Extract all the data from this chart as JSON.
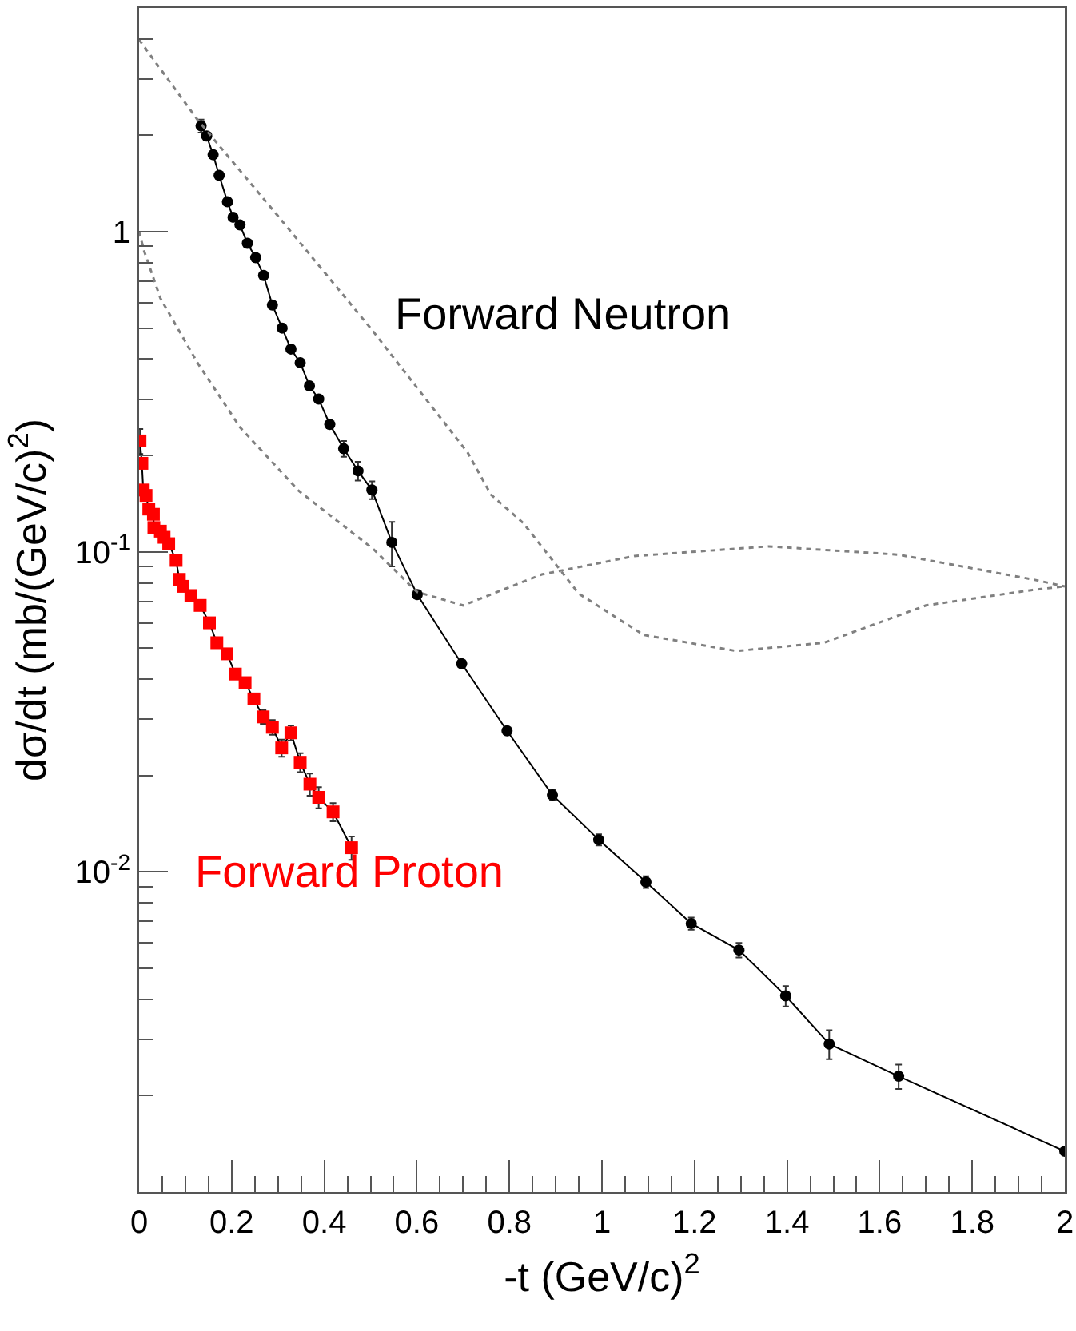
{
  "chart_data": {
    "type": "line",
    "xlabel": "-t (GeV/c)$^{2}$",
    "ylabel": "dσ/dt (mb/(GeV/c)$^{2}$)",
    "log": "y",
    "grid": false,
    "legend": false,
    "xlim": [
      0,
      2
    ],
    "xticks": [
      0,
      0.2,
      0.4,
      0.6,
      0.8,
      1,
      1.2,
      1.4,
      1.6,
      1.8,
      2
    ],
    "ylim": [
      0.001,
      5
    ],
    "yticks": [
      {
        "value": 1,
        "label": "1"
      },
      {
        "value": 0.1,
        "label": "10$^{-1}$"
      },
      {
        "value": 0.01,
        "label": "10$^{-2}$"
      }
    ],
    "series": [
      {
        "name": "Forward Neutron",
        "color": "#000000",
        "marker": "circle",
        "line_style": "solid",
        "x": [
          0.134,
          0.146,
          0.16,
          0.173,
          0.191,
          0.203,
          0.218,
          0.234,
          0.252,
          0.269,
          0.288,
          0.309,
          0.328,
          0.348,
          0.368,
          0.388,
          0.412,
          0.442,
          0.473,
          0.503,
          0.546,
          0.601,
          0.697,
          0.795,
          0.893,
          0.993,
          1.095,
          1.193,
          1.296,
          1.397,
          1.491,
          1.641,
          2
        ],
        "values": [
          2.14,
          1.99,
          1.74,
          1.5,
          1.24,
          1.11,
          1.05,
          0.92,
          0.83,
          0.73,
          0.59,
          0.5,
          0.43,
          0.39,
          0.33,
          0.3,
          0.25,
          0.21,
          0.179,
          0.156,
          0.107,
          0.0735,
          0.0447,
          0.0276,
          0.0174,
          0.0126,
          0.0093,
          0.0069,
          0.0057,
          0.0041,
          0.0029,
          0.0023,
          0.00134
        ],
        "errors": [
          0.1,
          null,
          null,
          null,
          null,
          null,
          null,
          null,
          null,
          null,
          null,
          null,
          null,
          null,
          null,
          null,
          null,
          0.012,
          0.012,
          0.01,
          0.017,
          null,
          null,
          null,
          0.0007,
          0.0005,
          0.0004,
          0.0003,
          0.0003,
          0.0003,
          0.0003,
          0.0002,
          null
        ]
      },
      {
        "name": "Forward Proton",
        "color": "#ff0000",
        "marker": "square",
        "line_style": "solid",
        "x": [
          0.002,
          0.006,
          0.009,
          0.015,
          0.021,
          0.031,
          0.032,
          0.046,
          0.054,
          0.064,
          0.08,
          0.087,
          0.095,
          0.112,
          0.132,
          0.152,
          0.168,
          0.19,
          0.208,
          0.229,
          0.248,
          0.268,
          0.288,
          0.308,
          0.328,
          0.348,
          0.369,
          0.388,
          0.419,
          0.459
        ],
        "values": [
          0.222,
          0.189,
          0.156,
          0.15,
          0.136,
          0.131,
          0.119,
          0.116,
          0.111,
          0.106,
          0.094,
          0.082,
          0.078,
          0.073,
          0.068,
          0.06,
          0.052,
          0.048,
          0.0415,
          0.039,
          0.0347,
          0.0305,
          0.0283,
          0.0244,
          0.0272,
          0.022,
          0.0188,
          0.0171,
          0.0154,
          0.0119
        ],
        "errors": [
          0.02,
          null,
          null,
          null,
          null,
          null,
          null,
          null,
          null,
          null,
          null,
          null,
          null,
          null,
          null,
          null,
          null,
          null,
          null,
          null,
          null,
          0.0015,
          0.0015,
          0.0015,
          0.0015,
          0.0015,
          0.0015,
          0.0013,
          0.001,
          0.001
        ]
      },
      {
        "color": "#808080",
        "marker": "none",
        "line_style": "dotted",
        "x": [
          0,
          0.126,
          0.3,
          0.5,
          0.71,
          0.76,
          0.83,
          0.95,
          1.09,
          1.29,
          1.48,
          1.7,
          1.93,
          2
        ],
        "values": [
          3.98,
          2.24,
          1.12,
          0.5,
          0.204,
          0.151,
          0.123,
          0.074,
          0.055,
          0.049,
          0.052,
          0.068,
          0.076,
          0.078
        ]
      },
      {
        "color": "#808080",
        "marker": "none",
        "line_style": "dotted",
        "x": [
          0,
          0.011,
          0.046,
          0.126,
          0.218,
          0.345,
          0.506,
          0.6,
          0.7,
          0.87,
          1.07,
          1.36,
          1.64,
          1.93,
          2
        ],
        "values": [
          1,
          0.87,
          0.62,
          0.39,
          0.245,
          0.155,
          0.102,
          0.075,
          0.068,
          0.085,
          0.097,
          0.104,
          0.098,
          0.082,
          0.078
        ]
      }
    ]
  }
}
